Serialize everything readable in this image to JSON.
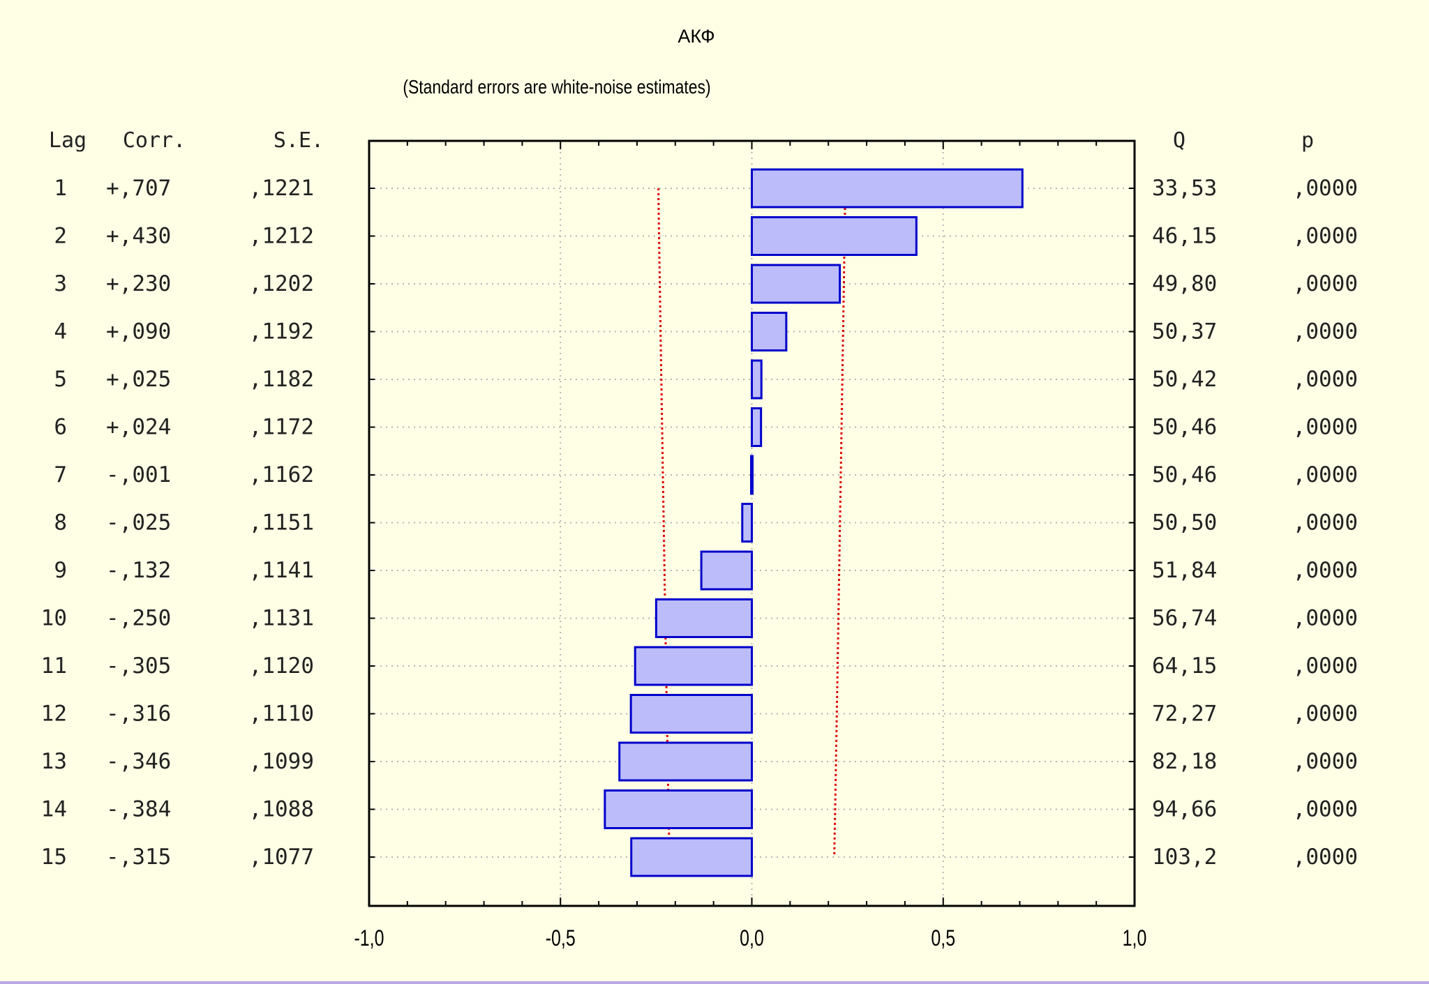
{
  "chart_data": {
    "type": "bar",
    "orientation": "horizontal",
    "title": "АКФ",
    "subtitle": "(Standard errors are white-noise estimates)",
    "column_headers": {
      "lag": "Lag",
      "corr": "Corr.",
      "se": "S.E.",
      "q": "Q",
      "p": "p"
    },
    "lags": [
      1,
      2,
      3,
      4,
      5,
      6,
      7,
      8,
      9,
      10,
      11,
      12,
      13,
      14,
      15
    ],
    "corr_labels": [
      "+,707",
      "+,430",
      "+,230",
      "+,090",
      "+,025",
      "+,024",
      "-,001",
      "-,025",
      "-,132",
      "-,250",
      "-,305",
      "-,316",
      "-,346",
      "-,384",
      "-,315"
    ],
    "values": [
      0.707,
      0.43,
      0.23,
      0.09,
      0.025,
      0.024,
      -0.001,
      -0.025,
      -0.132,
      -0.25,
      -0.305,
      -0.316,
      -0.346,
      -0.384,
      -0.315
    ],
    "se_labels": [
      ",1221",
      ",1212",
      ",1202",
      ",1192",
      ",1182",
      ",1172",
      ",1162",
      ",1151",
      ",1141",
      ",1131",
      ",1120",
      ",1110",
      ",1099",
      ",1088",
      ",1077"
    ],
    "se": [
      0.1221,
      0.1212,
      0.1202,
      0.1192,
      0.1182,
      0.1172,
      0.1162,
      0.1151,
      0.1141,
      0.1131,
      0.112,
      0.111,
      0.1099,
      0.1088,
      0.1077
    ],
    "q_labels": [
      "33,53",
      "46,15",
      "49,80",
      "50,37",
      "50,42",
      "50,46",
      "50,46",
      "50,50",
      "51,84",
      "56,74",
      "64,15",
      "72,27",
      "82,18",
      "94,66",
      "103,2"
    ],
    "p_labels": [
      ",0000",
      ",0000",
      ",0000",
      ",0000",
      ",0000",
      ",0000",
      ",0000",
      ",0000",
      ",0000",
      ",0000",
      ",0000",
      ",0000",
      ",0000",
      ",0000",
      ",0000"
    ],
    "xlim": [
      -1.0,
      1.0
    ],
    "x_ticks": [
      -1.0,
      -0.5,
      0.0,
      0.5,
      1.0
    ],
    "x_tick_labels": [
      "-1,0",
      "-0,5",
      "0,0",
      "0,5",
      "1,0"
    ],
    "confidence_band": "±2 S.E.",
    "grid": true,
    "colors": {
      "background": "#ffffe6",
      "bar_fill": "#bcbcfa",
      "bar_stroke": "#0000cc",
      "confidence_line": "#dd0000",
      "grid": "#b5b5b5"
    }
  }
}
